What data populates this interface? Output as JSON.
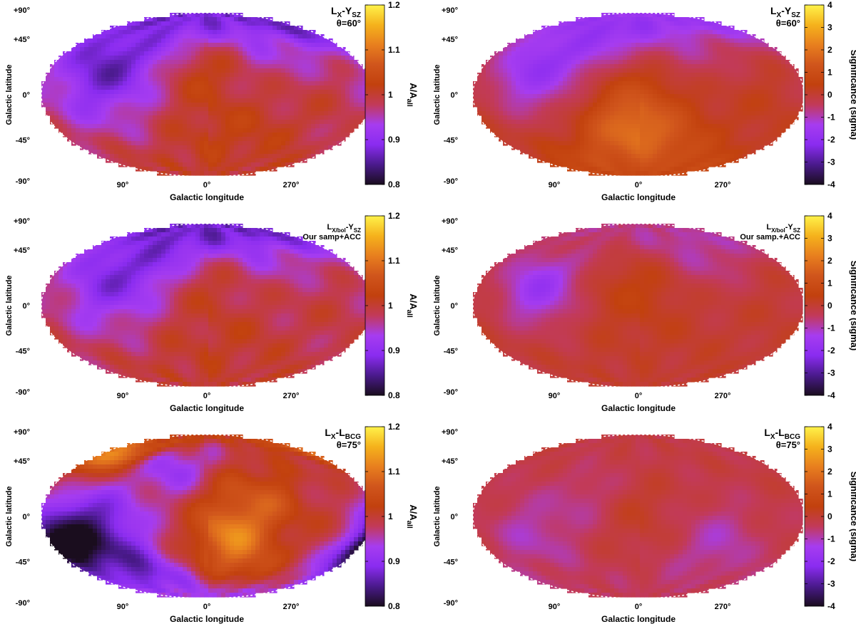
{
  "colors": {
    "sky_colormap": [
      "#1a0d1e",
      "#4a1a8c",
      "#8a2cf0",
      "#a63cf0",
      "#c23a5a",
      "#c2410e",
      "#d0551c",
      "#e87f1e",
      "#f5b21c",
      "#fff24a"
    ]
  },
  "chart_data": [
    {
      "type": "heatmap",
      "projection": "mollweide",
      "colorbar_position": "right",
      "title": [
        "L",
        "X",
        "-Y",
        "SZ"
      ],
      "subtitle": "θ=60°",
      "xlabel": "Galactic longitude",
      "ylabel": "Galactic latitude",
      "x_ticks": [
        "90°",
        "0°",
        "270°"
      ],
      "y_ticks": [
        "+90°",
        "+45°",
        "0°",
        "-45°",
        "-90°"
      ],
      "colorbar_label": [
        "A/A",
        "all"
      ],
      "colorbar_range": [
        0.8,
        1.2
      ],
      "colorbar_ticks": [
        "1.2",
        "1.1",
        "1",
        "0.9",
        "0.8"
      ],
      "field": {
        "base": 0.98,
        "blobs": [
          {
            "lon": 10,
            "lat": 45,
            "v": 0.04,
            "s": 30
          },
          {
            "lon": 120,
            "lat": 20,
            "v": -0.08,
            "s": 40
          },
          {
            "lon": 90,
            "lat": 60,
            "v": -0.06,
            "s": 40
          },
          {
            "lon": 280,
            "lat": 65,
            "v": -0.06,
            "s": 35
          },
          {
            "lon": 0,
            "lat": -35,
            "v": 0.03,
            "s": 40
          },
          {
            "lon": 270,
            "lat": -30,
            "v": 0.02,
            "s": 50
          }
        ]
      }
    },
    {
      "type": "heatmap",
      "projection": "mollweide",
      "colorbar_position": "right",
      "title": [
        "L",
        "X",
        "-Y",
        "SZ"
      ],
      "subtitle": "θ=60°",
      "xlabel": "Galactic longitude",
      "ylabel": "Galactic latitude",
      "x_ticks": [
        "90°",
        "0°",
        "270°"
      ],
      "y_ticks": [
        "+90°",
        "+45°",
        "0°",
        "-45°",
        "-90°"
      ],
      "colorbar_label": [
        "Significance (sigma)"
      ],
      "colorbar_range": [
        -4,
        4
      ],
      "colorbar_ticks": [
        "4",
        "3",
        "2",
        "1",
        "0",
        "-1",
        "-2",
        "-3",
        "-4"
      ],
      "field": {
        "base": 0.2,
        "blobs": [
          {
            "lon": 120,
            "lat": 25,
            "v": -1.8,
            "s": 35
          },
          {
            "lon": 60,
            "lat": 60,
            "v": -1.0,
            "s": 35
          },
          {
            "lon": 290,
            "lat": 60,
            "v": -1.0,
            "s": 35
          },
          {
            "lon": 350,
            "lat": -40,
            "v": 1.1,
            "s": 35
          },
          {
            "lon": 20,
            "lat": -30,
            "v": 0.8,
            "s": 30
          }
        ]
      }
    },
    {
      "type": "heatmap",
      "projection": "mollweide",
      "colorbar_position": "right",
      "title": [
        "L",
        "X/bol",
        "-Y",
        "SZ"
      ],
      "subtitle": "Our samp+ACC",
      "xlabel": "Galactic longitude",
      "ylabel": "Galactic latitude",
      "x_ticks": [
        "90°",
        "0°",
        "270°"
      ],
      "y_ticks": [
        "+90°",
        "+45°",
        "0°",
        "-45°",
        "-90°"
      ],
      "colorbar_label": [
        "A/A",
        "all"
      ],
      "colorbar_range": [
        0.8,
        1.2
      ],
      "colorbar_ticks": [
        "1.2",
        "1.1",
        "1",
        "0.9",
        "0.8"
      ],
      "field": {
        "base": 0.99,
        "blobs": [
          {
            "lon": 110,
            "lat": 25,
            "v": -0.09,
            "s": 40
          },
          {
            "lon": 60,
            "lat": 65,
            "v": -0.06,
            "s": 35
          },
          {
            "lon": 280,
            "lat": 65,
            "v": -0.06,
            "s": 30
          },
          {
            "lon": 10,
            "lat": 45,
            "v": 0.02,
            "s": 25
          },
          {
            "lon": 0,
            "lat": -40,
            "v": 0.02,
            "s": 40
          }
        ]
      }
    },
    {
      "type": "heatmap",
      "projection": "mollweide",
      "colorbar_position": "right",
      "title": [
        "L",
        "X/bol",
        "-Y",
        "SZ"
      ],
      "subtitle": "Our samp.+ACC",
      "xlabel": "Galactic longitude",
      "ylabel": "Galactic latitude",
      "x_ticks": [
        "90°",
        "0°",
        "270°"
      ],
      "y_ticks": [
        "+90°",
        "+45°",
        "0°",
        "-45°",
        "-90°"
      ],
      "colorbar_label": [
        "Significance (sigma)"
      ],
      "colorbar_range": [
        -4,
        4
      ],
      "colorbar_ticks": [
        "4",
        "3",
        "2",
        "1",
        "0",
        "-1",
        "-2",
        "-3",
        "-4"
      ],
      "field": {
        "base": 0.0,
        "blobs": [
          {
            "lon": 110,
            "lat": 20,
            "v": -1.7,
            "s": 30
          },
          {
            "lon": 280,
            "lat": 60,
            "v": -1.0,
            "s": 30
          },
          {
            "lon": 0,
            "lat": 20,
            "v": 0.4,
            "s": 40
          }
        ]
      }
    },
    {
      "type": "heatmap",
      "projection": "mollweide",
      "colorbar_position": "right",
      "title": [
        "L",
        "X",
        "-L",
        "BCG"
      ],
      "subtitle": "θ=75°",
      "xlabel": "Galactic longitude",
      "ylabel": "Galactic latitude",
      "x_ticks": [
        "90°",
        "0°",
        "270°"
      ],
      "y_ticks": [
        "+90°",
        "+45°",
        "0°",
        "-45°",
        "-90°"
      ],
      "colorbar_label": [
        "A/A",
        "all"
      ],
      "colorbar_range": [
        0.8,
        1.2
      ],
      "colorbar_ticks": [
        "1.2",
        "1.1",
        "1",
        "0.9",
        "0.8"
      ],
      "field": {
        "base": 0.99,
        "blobs": [
          {
            "lon": 150,
            "lat": -20,
            "v": -0.16,
            "s": 30
          },
          {
            "lon": 175,
            "lat": -35,
            "v": -0.12,
            "s": 15
          },
          {
            "lon": 100,
            "lat": -10,
            "v": -0.08,
            "s": 30
          },
          {
            "lon": 340,
            "lat": -20,
            "v": 0.1,
            "s": 25
          },
          {
            "lon": 300,
            "lat": 10,
            "v": 0.07,
            "s": 30
          },
          {
            "lon": 150,
            "lat": 65,
            "v": 0.13,
            "s": 15
          },
          {
            "lon": 40,
            "lat": 50,
            "v": -0.07,
            "s": 20
          },
          {
            "lon": 80,
            "lat": -70,
            "v": -0.07,
            "s": 25
          },
          {
            "lon": 310,
            "lat": -55,
            "v": 0.04,
            "s": 20
          }
        ]
      }
    },
    {
      "type": "heatmap",
      "projection": "mollweide",
      "colorbar_position": "right",
      "title": [
        "L",
        "X",
        "-L",
        "BCG"
      ],
      "subtitle": "θ=75°",
      "xlabel": "Galactic longitude",
      "ylabel": "Galactic latitude",
      "x_ticks": [
        "90°",
        "0°",
        "270°"
      ],
      "y_ticks": [
        "+90°",
        "+45°",
        "0°",
        "-45°",
        "-90°"
      ],
      "colorbar_label": [
        "Significance (sigma)"
      ],
      "colorbar_range": [
        -4,
        4
      ],
      "colorbar_ticks": [
        "4",
        "3",
        "2",
        "1",
        "0",
        "-1",
        "-2",
        "-3",
        "-4"
      ],
      "field": {
        "base": -0.2,
        "blobs": [
          {
            "lon": 120,
            "lat": -20,
            "v": -0.8,
            "s": 30
          },
          {
            "lon": 270,
            "lat": -30,
            "v": -0.8,
            "s": 30
          },
          {
            "lon": 60,
            "lat": 20,
            "v": -0.5,
            "s": 25
          },
          {
            "lon": 0,
            "lat": 0,
            "v": 0.3,
            "s": 30
          }
        ]
      }
    }
  ]
}
